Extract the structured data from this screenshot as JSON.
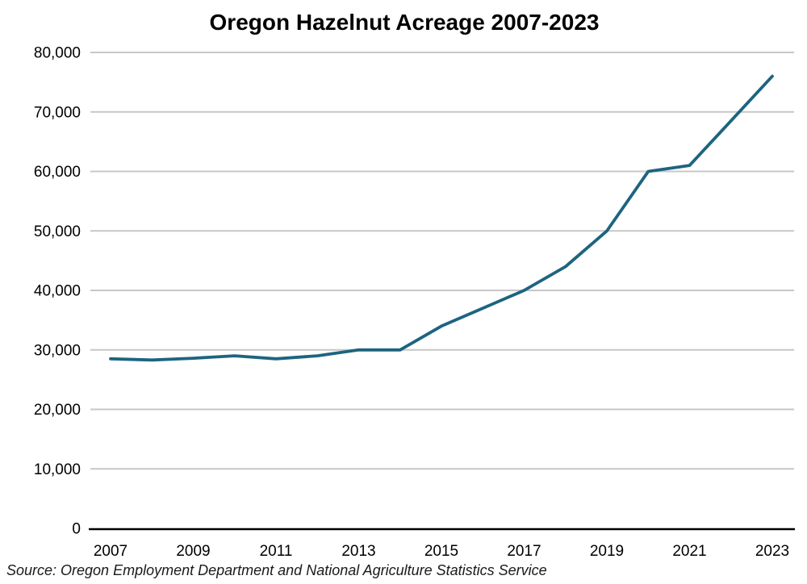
{
  "chart_data": {
    "type": "line",
    "title": "Oregon Hazelnut Acreage 2007-2023",
    "source": "Source: Oregon Employment Department and National Agriculture Statistics Service",
    "x": [
      2007,
      2008,
      2009,
      2010,
      2011,
      2012,
      2013,
      2014,
      2015,
      2016,
      2017,
      2018,
      2019,
      2020,
      2021,
      2022,
      2023
    ],
    "values": [
      28500,
      28300,
      28600,
      29000,
      28500,
      29000,
      30000,
      30000,
      34000,
      37000,
      40000,
      44000,
      50000,
      60000,
      61000,
      68500,
      76000
    ],
    "series_name": "Hazelnut acreage",
    "xticks": [
      2007,
      2009,
      2011,
      2013,
      2015,
      2017,
      2019,
      2021,
      2023
    ],
    "yticks": [
      0,
      10000,
      20000,
      30000,
      40000,
      50000,
      60000,
      70000,
      80000
    ],
    "ytick_labels": [
      "0",
      "10,000",
      "20,000",
      "30,000",
      "40,000",
      "50,000",
      "60,000",
      "70,000",
      "80,000"
    ],
    "xlim": [
      2007,
      2023
    ],
    "ylim": [
      0,
      80000
    ],
    "xlabel": "",
    "ylabel": "",
    "grid": "horizontal-only",
    "legend": "none",
    "line_color": "#1d6480",
    "gridline_color": "#c7c7c7",
    "axis_color": "#000000",
    "background_color": "#ffffff"
  }
}
